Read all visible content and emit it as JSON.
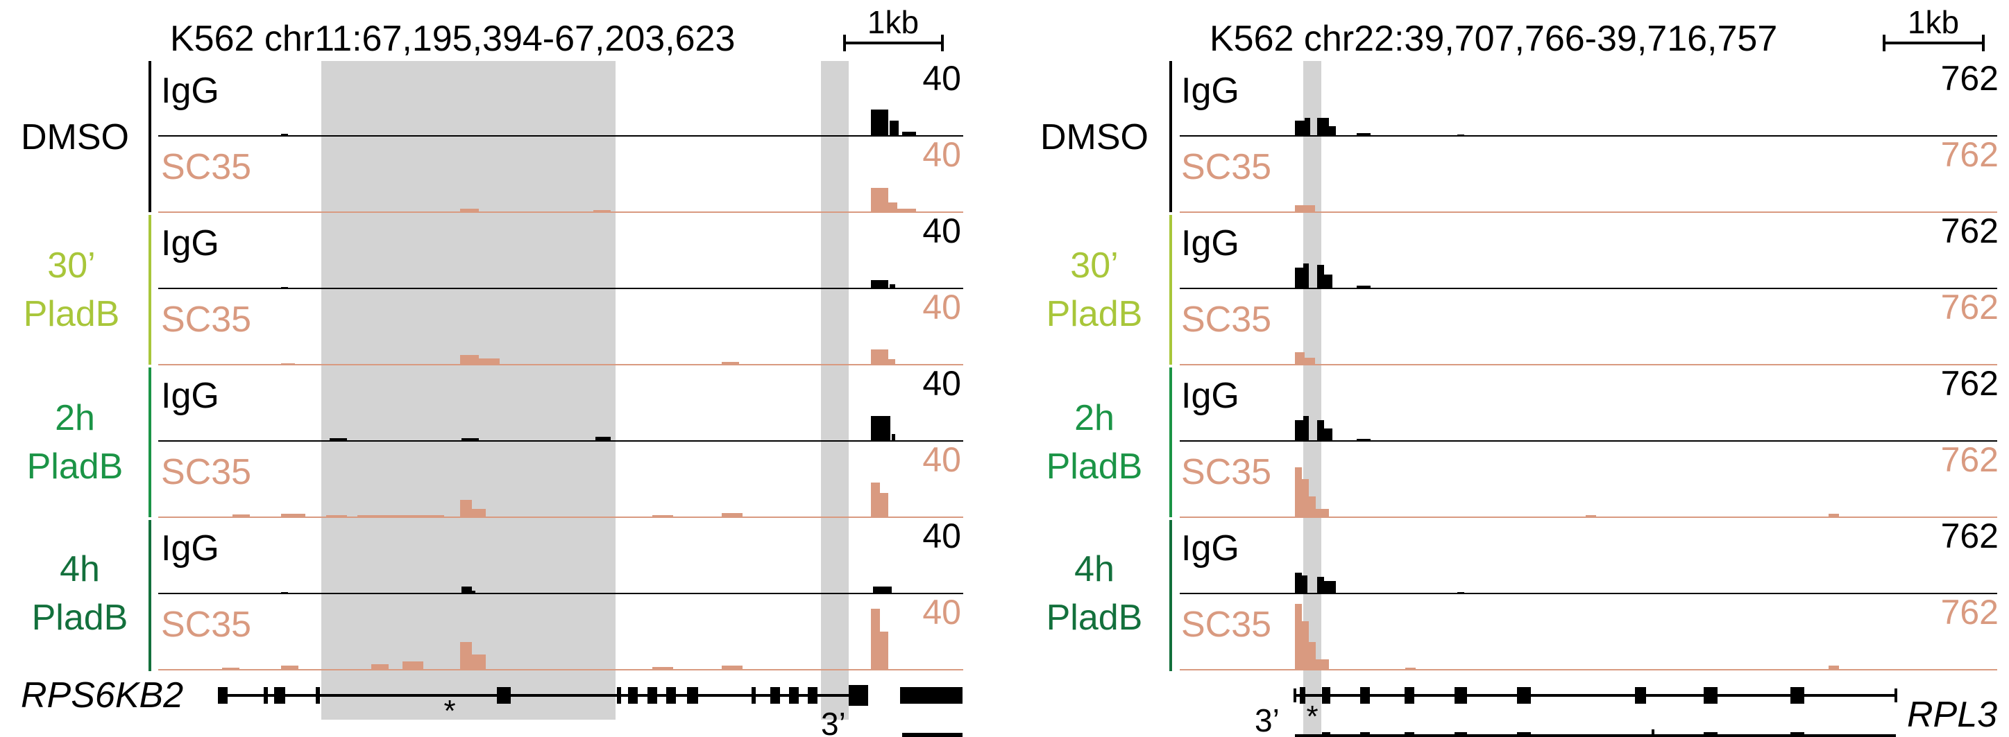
{
  "colors": {
    "igg": "#000000",
    "sc35": "#d99a80",
    "highlight": "#d3d3d3",
    "cond_dmso": "#000000",
    "cond_30m": "#a8c63a",
    "cond_2h": "#1b9446",
    "cond_4h": "#13703c"
  },
  "panels": [
    {
      "title": "K562 chr11:67,195,394-67,203,623",
      "scalebar_label": "1kb",
      "gene_name": "RPS6KB2",
      "star_label": "*",
      "three_prime_label": "3’",
      "igg_scale": "40",
      "sc35_scale": "40",
      "track_labels": {
        "igg": "IgG",
        "sc35": "SC35"
      }
    },
    {
      "title": "K562 chr22:39,707,766-39,716,757",
      "scalebar_label": "1kb",
      "gene_name": "RPL3",
      "star_label": "*",
      "three_prime_label": "3’",
      "igg_scale": "762",
      "sc35_scale": "762",
      "track_labels": {
        "igg": "IgG",
        "sc35": "SC35"
      }
    }
  ],
  "conditions": [
    {
      "key": "dmso",
      "line1": "DMSO",
      "line2": ""
    },
    {
      "key": "m30",
      "line1": "30’",
      "line2": "PladB"
    },
    {
      "key": "h2",
      "line1": "2h",
      "line2": "PladB"
    },
    {
      "key": "h4",
      "line1": "4h",
      "line2": "PladB"
    }
  ]
}
